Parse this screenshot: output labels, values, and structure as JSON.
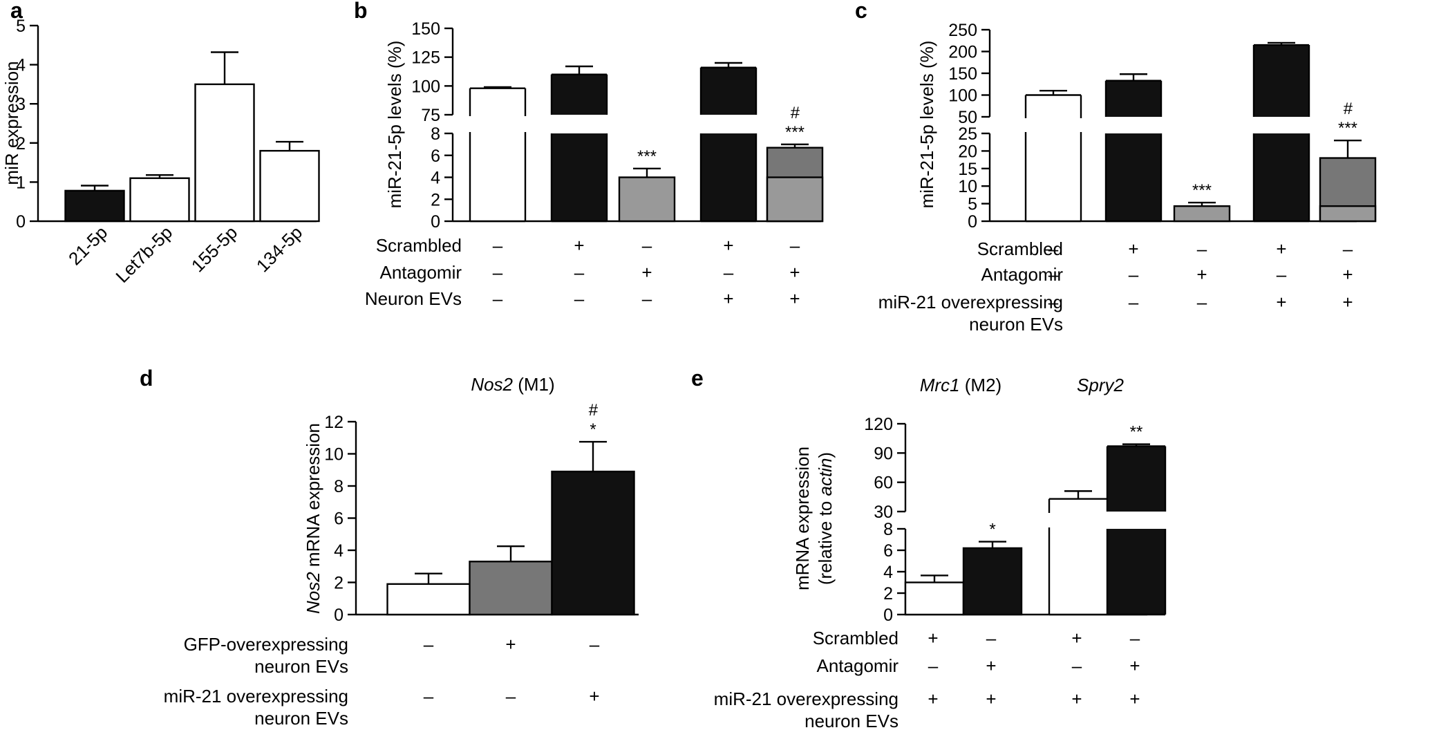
{
  "chart_data": [
    {
      "id": "a",
      "type": "bar",
      "panel_label": "a",
      "ylabel": "miR expression",
      "ylim": [
        0,
        5
      ],
      "yticks": [
        "0",
        "1",
        "2",
        "3",
        "4",
        "5"
      ],
      "categories": [
        "21-5p",
        "Let7b-5p",
        "155-5p",
        "134-5p"
      ],
      "values": [
        0.78,
        1.1,
        3.5,
        1.8
      ],
      "errors": [
        0.13,
        0.08,
        0.82,
        0.23
      ],
      "fills": [
        "#111111",
        "#ffffff",
        "#ffffff",
        "#ffffff"
      ]
    },
    {
      "id": "b",
      "type": "bar",
      "panel_label": "b",
      "ylabel": "miR-21-5p levels (%)",
      "axis_break": true,
      "lower_range": [
        0,
        8
      ],
      "upper_range": [
        75,
        150
      ],
      "lower_ticks": [
        "0",
        "2",
        "4",
        "6",
        "8"
      ],
      "upper_ticks": [
        "75",
        "100",
        "125",
        "150"
      ],
      "values": [
        98,
        110,
        4.0,
        116,
        6.7
      ],
      "errors": [
        1,
        7,
        0.8,
        4,
        0.3
      ],
      "fills": [
        "#ffffff",
        "#111111",
        "#999999",
        "#111111",
        "#777777"
      ],
      "stack_lower": [
        null,
        null,
        null,
        null,
        4.0
      ],
      "stack_lower_fill": "#999999",
      "annotations": [
        "",
        "",
        "***",
        "",
        "#\n***"
      ],
      "conditions": [
        {
          "label": "Scrambled",
          "marks": [
            "–",
            "+",
            "–",
            "+",
            "–"
          ]
        },
        {
          "label": "Antagomir",
          "marks": [
            "–",
            "–",
            "+",
            "–",
            "+"
          ]
        },
        {
          "label": "Neuron EVs",
          "marks": [
            "–",
            "–",
            "–",
            "+",
            "+"
          ]
        }
      ]
    },
    {
      "id": "c",
      "type": "bar",
      "panel_label": "c",
      "ylabel": "miR-21-5p levels (%)",
      "axis_break": true,
      "lower_range": [
        0,
        25
      ],
      "upper_range": [
        50,
        250
      ],
      "lower_ticks": [
        "0",
        "5",
        "10",
        "15",
        "20",
        "25"
      ],
      "upper_ticks": [
        "50",
        "100",
        "150",
        "200",
        "250"
      ],
      "values": [
        100,
        133,
        4.3,
        215,
        18
      ],
      "errors": [
        10,
        15,
        1,
        5,
        5
      ],
      "fills": [
        "#ffffff",
        "#111111",
        "#999999",
        "#111111",
        "#777777"
      ],
      "stack_lower": [
        null,
        null,
        null,
        null,
        4.3
      ],
      "stack_lower_fill": "#999999",
      "annotations": [
        "",
        "",
        "***",
        "",
        "#\n***"
      ],
      "conditions": [
        {
          "label": "Scrambled",
          "marks": [
            "–",
            "+",
            "–",
            "+",
            "–"
          ]
        },
        {
          "label": "Antagomir",
          "marks": [
            "–",
            "–",
            "+",
            "–",
            "+"
          ]
        },
        {
          "label": "miR-21 overexpressing\nneuron EVs",
          "marks": [
            "–",
            "–",
            "–",
            "+",
            "+"
          ]
        }
      ]
    },
    {
      "id": "d",
      "type": "bar",
      "panel_label": "d",
      "title_italic": "Nos2",
      "title_rest": " (M1)",
      "ylabel_italic": "Nos2",
      "ylabel_rest": " mRNA expression",
      "ylim": [
        0,
        12
      ],
      "yticks": [
        "0",
        "2",
        "4",
        "6",
        "8",
        "10",
        "12"
      ],
      "values": [
        1.9,
        3.3,
        8.9
      ],
      "errors": [
        0.65,
        0.95,
        1.85
      ],
      "fills": [
        "#ffffff",
        "#777777",
        "#111111"
      ],
      "annotations": [
        "",
        "",
        "#\n*"
      ],
      "conditions": [
        {
          "label": "GFP-overexpressing\nneuron EVs",
          "marks": [
            "–",
            "+",
            "–"
          ]
        },
        {
          "label": "miR-21 overexpressing\nneuron EVs",
          "marks": [
            "–",
            "–",
            "+"
          ]
        }
      ]
    },
    {
      "id": "e",
      "type": "bar",
      "panel_label": "e",
      "ylabel_line1": "mRNA expression",
      "ylabel_line2_pre": "(relative to ",
      "ylabel_line2_italic": "actin",
      "ylabel_line2_post": ")",
      "axis_break": true,
      "lower_range": [
        0,
        8
      ],
      "upper_range": [
        30,
        120
      ],
      "lower_ticks": [
        "0",
        "2",
        "4",
        "6",
        "8"
      ],
      "upper_ticks": [
        "30",
        "60",
        "90",
        "120"
      ],
      "groups": [
        {
          "title_italic": "Mrc1",
          "title_rest": " (M2)"
        },
        {
          "title_italic": "Spry2",
          "title_rest": ""
        }
      ],
      "values": [
        3.0,
        6.2,
        43,
        97
      ],
      "errors": [
        0.65,
        0.6,
        8,
        2
      ],
      "fills": [
        "#ffffff",
        "#111111",
        "#ffffff",
        "#111111"
      ],
      "annotations": [
        "",
        "*",
        "",
        "**"
      ],
      "conditions": [
        {
          "label": "Scrambled",
          "marks": [
            "+",
            "–",
            "+",
            "–"
          ]
        },
        {
          "label": "Antagomir",
          "marks": [
            "–",
            "+",
            "–",
            "+"
          ]
        },
        {
          "label": "miR-21 overexpressing\nneuron EVs",
          "marks": [
            "+",
            "+",
            "+",
            "+"
          ]
        }
      ]
    }
  ]
}
